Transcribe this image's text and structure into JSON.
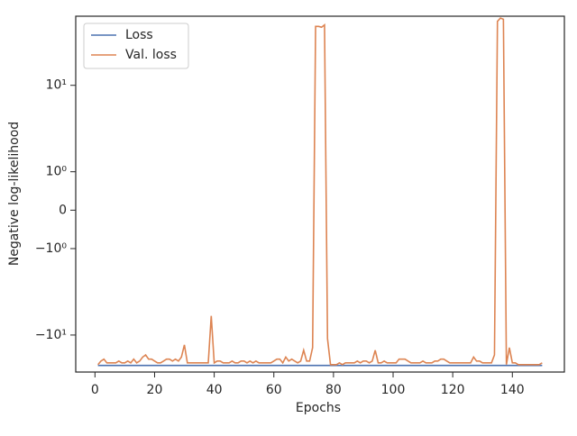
{
  "chart_data": {
    "type": "line",
    "x_label": "Epochs",
    "y_label": "Negative log-likelihood",
    "x": [
      1,
      2,
      3,
      4,
      5,
      6,
      7,
      8,
      9,
      10,
      11,
      12,
      13,
      14,
      15,
      16,
      17,
      18,
      19,
      20,
      21,
      22,
      23,
      24,
      25,
      26,
      27,
      28,
      29,
      30,
      31,
      32,
      33,
      34,
      35,
      36,
      37,
      38,
      39,
      40,
      41,
      42,
      43,
      44,
      45,
      46,
      47,
      48,
      49,
      50,
      51,
      52,
      53,
      54,
      55,
      56,
      57,
      58,
      59,
      60,
      61,
      62,
      63,
      64,
      65,
      66,
      67,
      68,
      69,
      70,
      71,
      72,
      73,
      74,
      75,
      76,
      77,
      78,
      79,
      80,
      81,
      82,
      83,
      84,
      85,
      86,
      87,
      88,
      89,
      90,
      91,
      92,
      93,
      94,
      95,
      96,
      97,
      98,
      99,
      100,
      101,
      102,
      103,
      104,
      105,
      106,
      107,
      108,
      109,
      110,
      111,
      112,
      113,
      114,
      115,
      116,
      117,
      118,
      119,
      120,
      121,
      122,
      123,
      124,
      125,
      126,
      127,
      128,
      129,
      130,
      131,
      132,
      133,
      134,
      135,
      136,
      137,
      138,
      139,
      140,
      141,
      142,
      143,
      144,
      145,
      146,
      147,
      148,
      149,
      150
    ],
    "series": [
      {
        "name": "Loss",
        "color": "#4c72b0",
        "values": [
          -22.5,
          -22.5,
          -22.5,
          -22.5,
          -22.5,
          -22.5,
          -22.5,
          -22.5,
          -22.5,
          -22.5,
          -22.5,
          -22.5,
          -22.5,
          -22.5,
          -22.5,
          -22.5,
          -22.5,
          -22.5,
          -22.5,
          -22.5,
          -22.5,
          -22.5,
          -22.5,
          -22.5,
          -22.5,
          -22.5,
          -22.5,
          -22.5,
          -22.5,
          -22.5,
          -22.5,
          -22.5,
          -22.5,
          -22.5,
          -22.5,
          -22.5,
          -22.5,
          -22.5,
          -22.5,
          -22.5,
          -22.5,
          -22.5,
          -22.5,
          -22.5,
          -22.5,
          -22.5,
          -22.5,
          -22.5,
          -22.5,
          -22.5,
          -22.5,
          -22.5,
          -22.5,
          -22.5,
          -22.5,
          -22.5,
          -22.5,
          -22.5,
          -22.5,
          -22.5,
          -22.5,
          -22.5,
          -22.5,
          -22.5,
          -22.5,
          -22.5,
          -22.5,
          -22.5,
          -22.5,
          -22.5,
          -22.5,
          -22.5,
          -22.5,
          -22.5,
          -22.5,
          -22.5,
          -22.5,
          -22.5,
          -22.5,
          -22.5,
          -22.5,
          -22.5,
          -22.5,
          -22.5,
          -22.5,
          -22.5,
          -22.5,
          -22.5,
          -22.5,
          -22.5,
          -22.5,
          -22.5,
          -22.5,
          -22.5,
          -22.5,
          -22.5,
          -22.5,
          -22.5,
          -22.5,
          -22.5,
          -22.5,
          -22.5,
          -22.5,
          -22.5,
          -22.5,
          -22.5,
          -22.5,
          -22.5,
          -22.5,
          -22.5,
          -22.5,
          -22.5,
          -22.5,
          -22.5,
          -22.5,
          -22.5,
          -22.5,
          -22.5,
          -22.5,
          -22.5,
          -22.5,
          -22.5,
          -22.5,
          -22.5,
          -22.5,
          -22.5,
          -22.5,
          -22.5,
          -22.5,
          -22.5,
          -22.5,
          -22.5,
          -22.5,
          -22.5,
          -22.5,
          -22.5,
          -22.5,
          -22.5,
          -22.5,
          -22.5,
          -22.5,
          -22.5,
          -22.5,
          -22.5,
          -22.5,
          -22.5,
          -22.5,
          -22.5,
          -22.5,
          -22.5
        ]
      },
      {
        "name": "Val. loss",
        "color": "#dd8452",
        "values": [
          -22,
          -20,
          -19,
          -21,
          -21,
          -21,
          -21,
          -20,
          -21,
          -21,
          -20,
          -21,
          -19,
          -21,
          -20,
          -18,
          -17,
          -19,
          -19,
          -20,
          -21,
          -21,
          -20,
          -19,
          -19,
          -20,
          -19,
          -20,
          -18,
          -13,
          -21,
          -21,
          -21,
          -21,
          -21,
          -21,
          -21,
          -21,
          -6,
          -21,
          -20,
          -20,
          -21,
          -21,
          -21,
          -20,
          -21,
          -21,
          -20,
          -20,
          -21,
          -20,
          -21,
          -20,
          -21,
          -21,
          -21,
          -21,
          -21,
          -20,
          -19,
          -19,
          -21,
          -18,
          -20,
          -19,
          -20,
          -21,
          -20,
          -15,
          -20,
          -20,
          -14,
          48,
          48,
          47,
          50,
          -11,
          -22,
          -22,
          -22,
          -21,
          -22,
          -21,
          -21,
          -21,
          -21,
          -20,
          -21,
          -20,
          -20,
          -21,
          -20,
          -15,
          -21,
          -21,
          -20,
          -21,
          -21,
          -21,
          -21,
          -19,
          -19,
          -19,
          -20,
          -21,
          -21,
          -21,
          -21,
          -20,
          -21,
          -21,
          -21,
          -20,
          -20,
          -19,
          -19,
          -20,
          -21,
          -21,
          -21,
          -21,
          -21,
          -21,
          -21,
          -21,
          -18,
          -20,
          -20,
          -21,
          -21,
          -21,
          -21,
          -17,
          55,
          60,
          58,
          -22,
          -14,
          -21,
          -21,
          -22,
          -22,
          -22,
          -22,
          -22,
          -22,
          -22,
          -22,
          -21
        ]
      }
    ],
    "xlim": [
      -6.45,
      157.45
    ],
    "xticks": [
      0,
      20,
      40,
      60,
      80,
      100,
      120,
      140
    ],
    "ylim": [
      -26.8,
      63
    ],
    "yscale": "symlog",
    "linthresh": 1,
    "linscale": 0.4,
    "yticks": [
      {
        "value": 10,
        "label": "10¹"
      },
      {
        "value": 1,
        "label": "10⁰"
      },
      0,
      {
        "value": -1,
        "label": "−10⁰"
      },
      {
        "value": -10,
        "label": "−10¹"
      }
    ],
    "legend": "upper left"
  }
}
